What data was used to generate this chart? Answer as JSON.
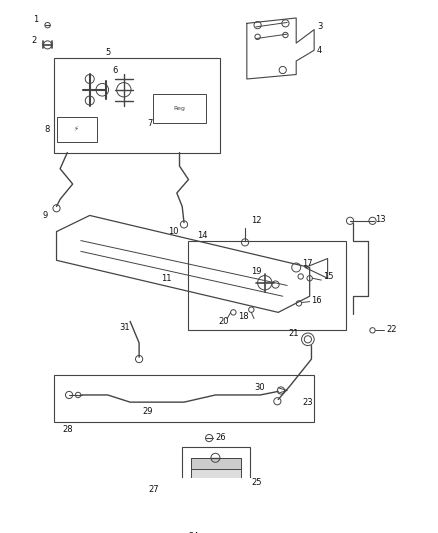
{
  "bg_color": "#ffffff",
  "line_color": "#444444",
  "label_color": "#111111",
  "fig_width": 4.38,
  "fig_height": 5.33,
  "dpi": 100,
  "label_fs": 6.0
}
